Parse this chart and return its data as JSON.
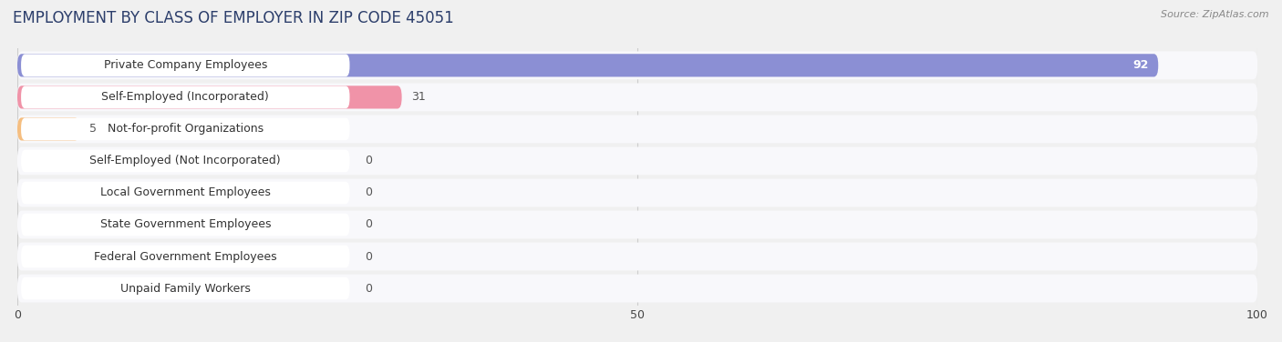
{
  "title": "EMPLOYMENT BY CLASS OF EMPLOYER IN ZIP CODE 45051",
  "source": "Source: ZipAtlas.com",
  "categories": [
    "Private Company Employees",
    "Self-Employed (Incorporated)",
    "Not-for-profit Organizations",
    "Self-Employed (Not Incorporated)",
    "Local Government Employees",
    "State Government Employees",
    "Federal Government Employees",
    "Unpaid Family Workers"
  ],
  "values": [
    92,
    31,
    5,
    0,
    0,
    0,
    0,
    0
  ],
  "bar_colors": [
    "#8b8fd4",
    "#f093a8",
    "#f5be80",
    "#f093a8",
    "#a0bce0",
    "#b8a8d8",
    "#6cc4bc",
    "#a8bce8"
  ],
  "xlim": [
    0,
    100
  ],
  "xticks": [
    0,
    50,
    100
  ],
  "background_color": "#f0f0f0",
  "row_bg_color": "#ffffff",
  "row_alt_color": "#f0f0f5",
  "title_fontsize": 12,
  "bar_height": 0.72,
  "value_fontsize": 9,
  "label_fontsize": 9
}
